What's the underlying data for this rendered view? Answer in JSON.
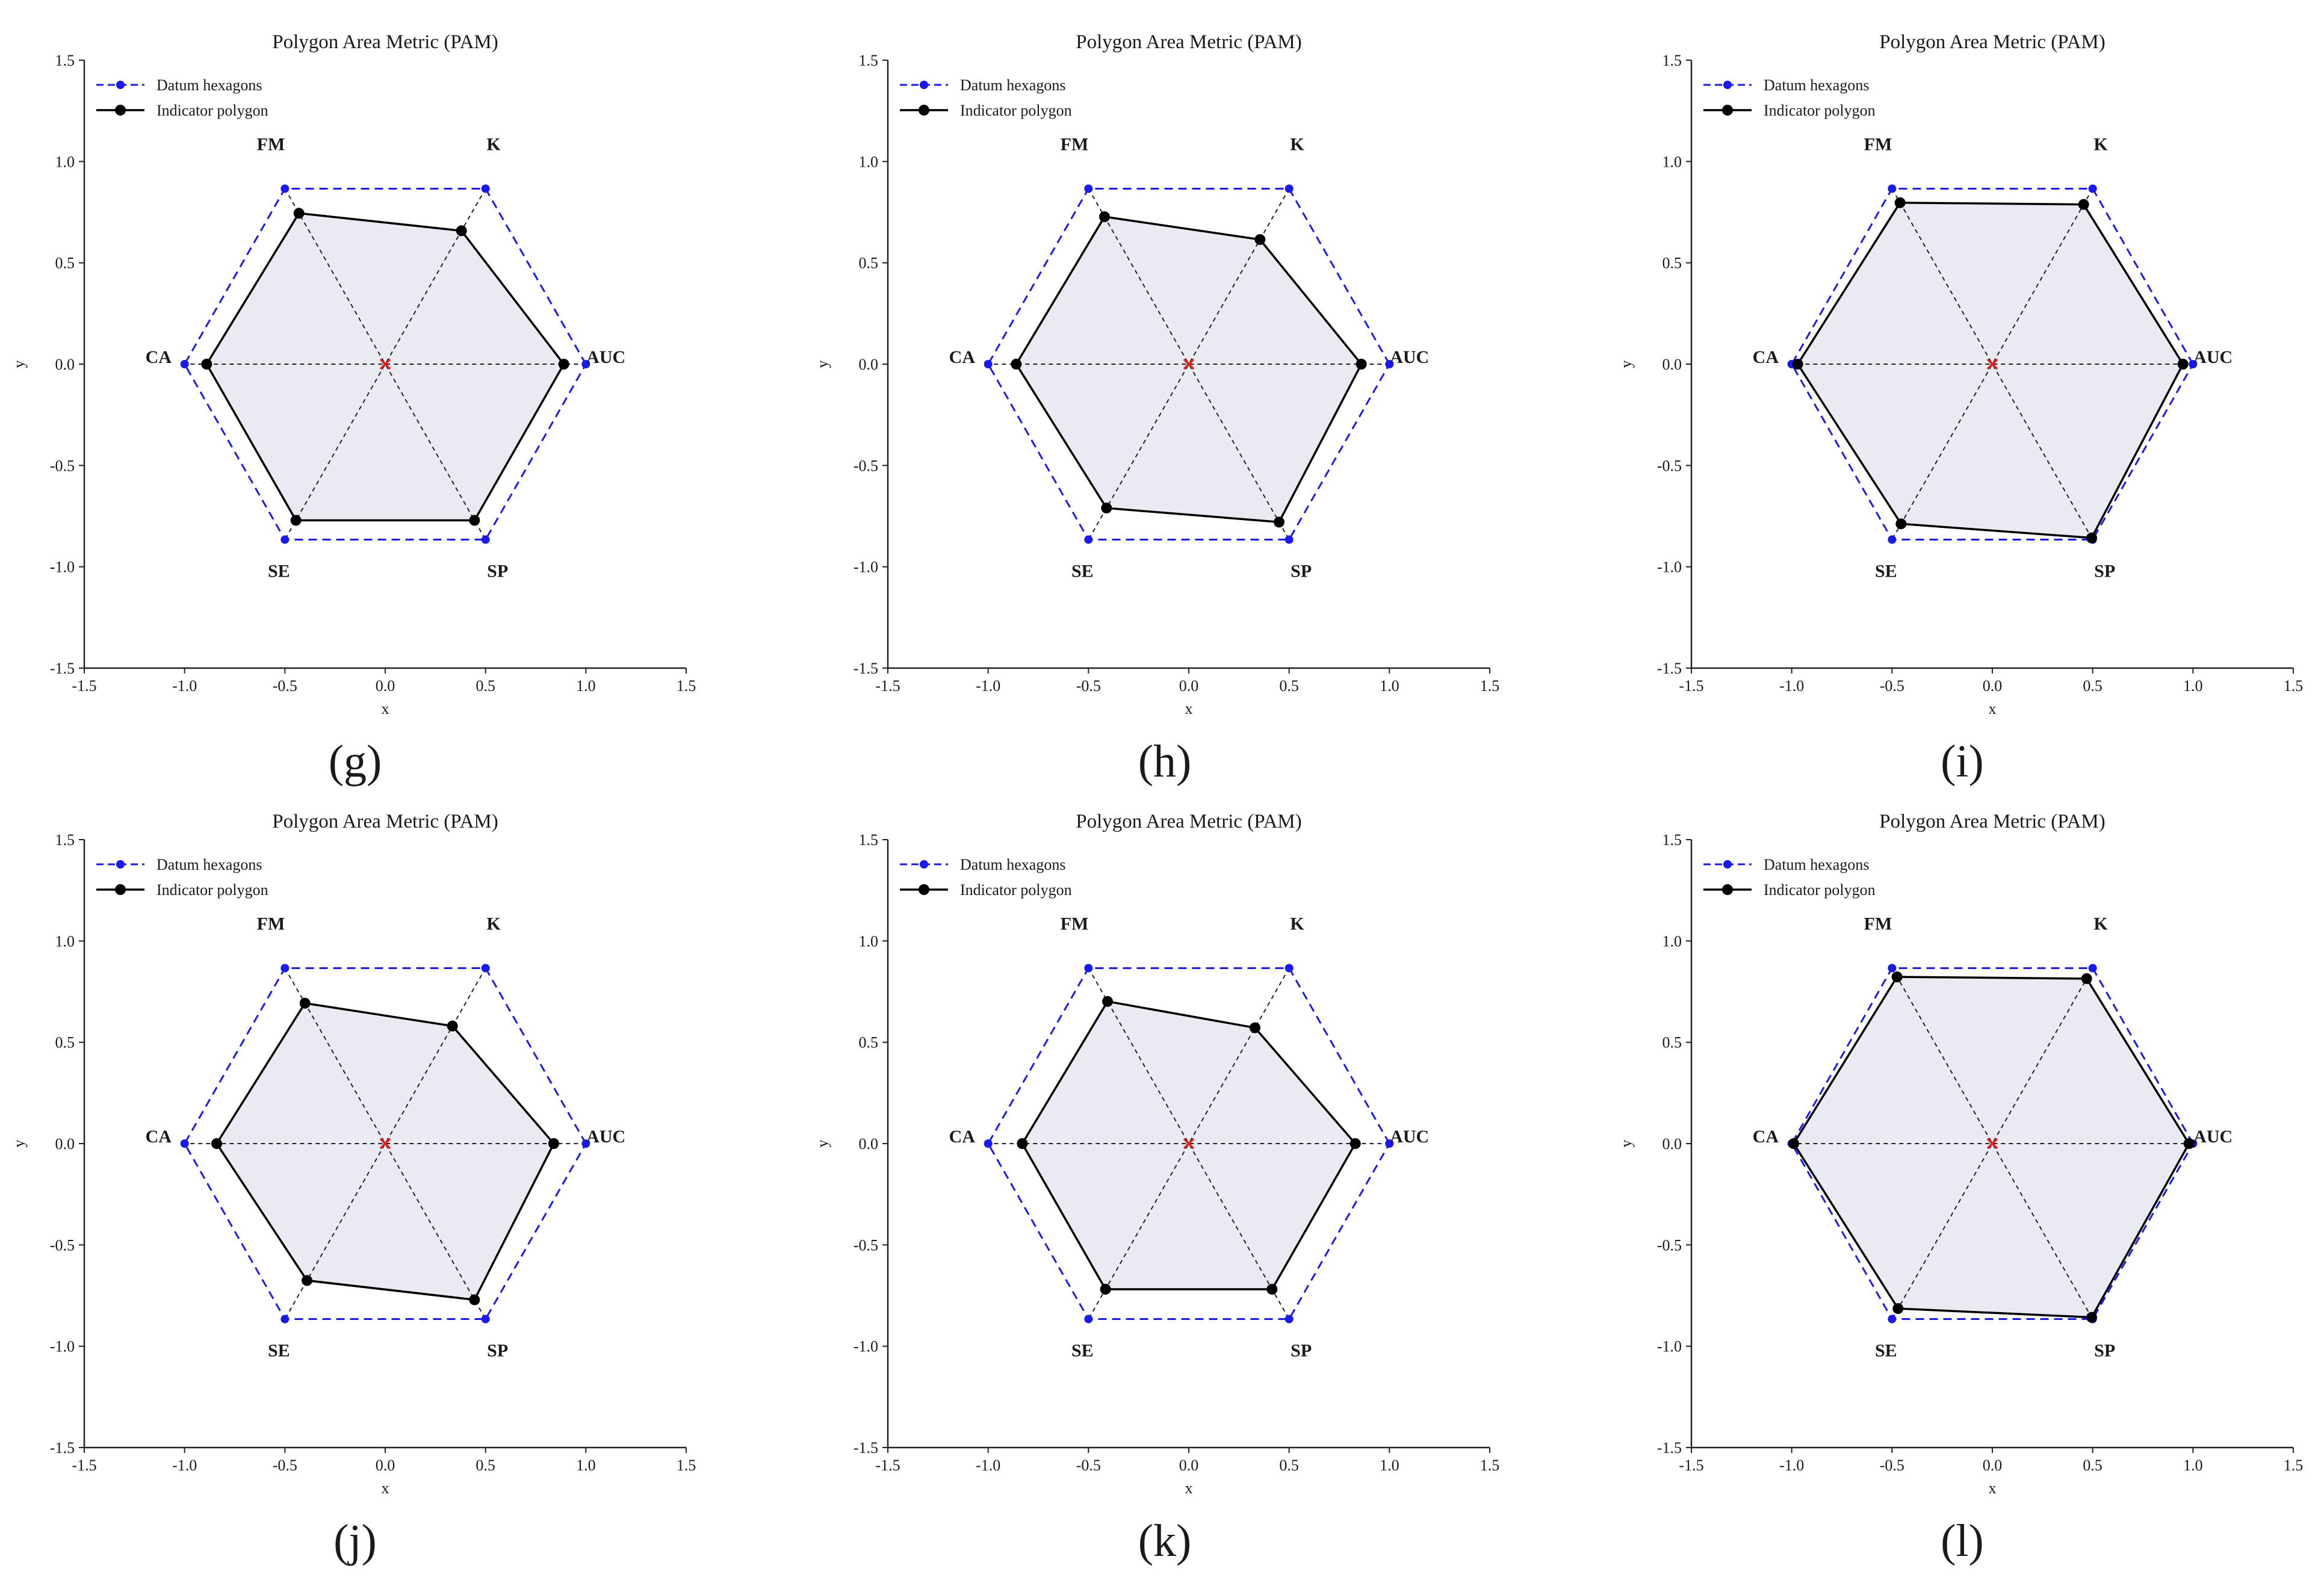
{
  "figure": {
    "panel_labels": [
      "(g)",
      "(h)",
      "(i)",
      "(j)",
      "(k)",
      "(l)"
    ]
  },
  "chart_data": [
    {
      "type": "radar-polygon",
      "panel": "(g)",
      "title": "Polygon Area Metric (PAM)",
      "xlabel": "x",
      "ylabel": "y",
      "xlim": [
        -1.5,
        1.5
      ],
      "ylim": [
        -1.5,
        1.5
      ],
      "ticks": [
        "-1.5",
        "-1.0",
        "-0.5",
        "0.0",
        "0.5",
        "1.0",
        "1.5"
      ],
      "legend": [
        "Datum hexagons",
        "Indicator polygon"
      ],
      "legend_position": "top-left",
      "colors": {
        "datum": "#1a1aee",
        "indicator": "#000000",
        "fill": "#e6e6f0",
        "center": "#e02020"
      },
      "vertex_labels": [
        "AUC",
        "K",
        "FM",
        "CA",
        "SE",
        "SP"
      ],
      "indicator_values": {
        "AUC": 0.89,
        "K": 0.76,
        "FM": 0.86,
        "CA": 0.89,
        "SE": 0.89,
        "SP": 0.89
      }
    },
    {
      "type": "radar-polygon",
      "panel": "(h)",
      "title": "Polygon Area Metric (PAM)",
      "xlabel": "x",
      "ylabel": "y",
      "xlim": [
        -1.5,
        1.5
      ],
      "ylim": [
        -1.5,
        1.5
      ],
      "ticks": [
        "-1.5",
        "-1.0",
        "-0.5",
        "0.0",
        "0.5",
        "1.0",
        "1.5"
      ],
      "legend": [
        "Datum hexagons",
        "Indicator polygon"
      ],
      "legend_position": "top-left",
      "colors": {
        "datum": "#1a1aee",
        "indicator": "#000000",
        "fill": "#e6e6f0",
        "center": "#e02020"
      },
      "vertex_labels": [
        "AUC",
        "K",
        "FM",
        "CA",
        "SE",
        "SP"
      ],
      "indicator_values": {
        "AUC": 0.86,
        "K": 0.71,
        "FM": 0.84,
        "CA": 0.86,
        "SE": 0.82,
        "SP": 0.9
      }
    },
    {
      "type": "radar-polygon",
      "panel": "(i)",
      "title": "Polygon Area Metric (PAM)",
      "xlabel": "x",
      "ylabel": "y",
      "xlim": [
        -1.5,
        1.5
      ],
      "ylim": [
        -1.5,
        1.5
      ],
      "ticks": [
        "-1.5",
        "-1.0",
        "-0.5",
        "0.0",
        "0.5",
        "1.0",
        "1.5"
      ],
      "legend": [
        "Datum hexagons",
        "Indicator polygon"
      ],
      "legend_position": "top-left",
      "colors": {
        "datum": "#1a1aee",
        "indicator": "#000000",
        "fill": "#e6e6f0",
        "center": "#e02020"
      },
      "vertex_labels": [
        "AUC",
        "K",
        "FM",
        "CA",
        "SE",
        "SP"
      ],
      "indicator_values": {
        "AUC": 0.95,
        "K": 0.91,
        "FM": 0.92,
        "CA": 0.97,
        "SE": 0.91,
        "SP": 0.99
      }
    },
    {
      "type": "radar-polygon",
      "panel": "(j)",
      "title": "Polygon Area Metric (PAM)",
      "xlabel": "x",
      "ylabel": "y",
      "xlim": [
        -1.5,
        1.5
      ],
      "ylim": [
        -1.5,
        1.5
      ],
      "ticks": [
        "-1.5",
        "-1.0",
        "-0.5",
        "0.0",
        "0.5",
        "1.0",
        "1.5"
      ],
      "legend": [
        "Datum hexagons",
        "Indicator polygon"
      ],
      "legend_position": "top-left",
      "colors": {
        "datum": "#1a1aee",
        "indicator": "#000000",
        "fill": "#e6e6f0",
        "center": "#e02020"
      },
      "vertex_labels": [
        "AUC",
        "K",
        "FM",
        "CA",
        "SE",
        "SP"
      ],
      "indicator_values": {
        "AUC": 0.84,
        "K": 0.67,
        "FM": 0.8,
        "CA": 0.84,
        "SE": 0.78,
        "SP": 0.89
      }
    },
    {
      "type": "radar-polygon",
      "panel": "(k)",
      "title": "Polygon Area Metric (PAM)",
      "xlabel": "x",
      "ylabel": "y",
      "xlim": [
        -1.5,
        1.5
      ],
      "ylim": [
        -1.5,
        1.5
      ],
      "ticks": [
        "-1.5",
        "-1.0",
        "-0.5",
        "0.0",
        "0.5",
        "1.0",
        "1.5"
      ],
      "legend": [
        "Datum hexagons",
        "Indicator polygon"
      ],
      "legend_position": "top-left",
      "colors": {
        "datum": "#1a1aee",
        "indicator": "#000000",
        "fill": "#e6e6f0",
        "center": "#e02020"
      },
      "vertex_labels": [
        "AUC",
        "K",
        "FM",
        "CA",
        "SE",
        "SP"
      ],
      "indicator_values": {
        "AUC": 0.83,
        "K": 0.66,
        "FM": 0.81,
        "CA": 0.83,
        "SE": 0.83,
        "SP": 0.83
      }
    },
    {
      "type": "radar-polygon",
      "panel": "(l)",
      "title": "Polygon Area Metric (PAM)",
      "xlabel": "x",
      "ylabel": "y",
      "xlim": [
        -1.5,
        1.5
      ],
      "ylim": [
        -1.5,
        1.5
      ],
      "ticks": [
        "-1.5",
        "-1.0",
        "-0.5",
        "0.0",
        "0.5",
        "1.0",
        "1.5"
      ],
      "legend": [
        "Datum hexagons",
        "Indicator polygon"
      ],
      "legend_position": "top-left",
      "colors": {
        "datum": "#1a1aee",
        "indicator": "#000000",
        "fill": "#e6e6f0",
        "center": "#e02020"
      },
      "vertex_labels": [
        "AUC",
        "K",
        "FM",
        "CA",
        "SE",
        "SP"
      ],
      "indicator_values": {
        "AUC": 0.98,
        "K": 0.94,
        "FM": 0.95,
        "CA": 0.99,
        "SE": 0.94,
        "SP": 0.99
      }
    }
  ]
}
